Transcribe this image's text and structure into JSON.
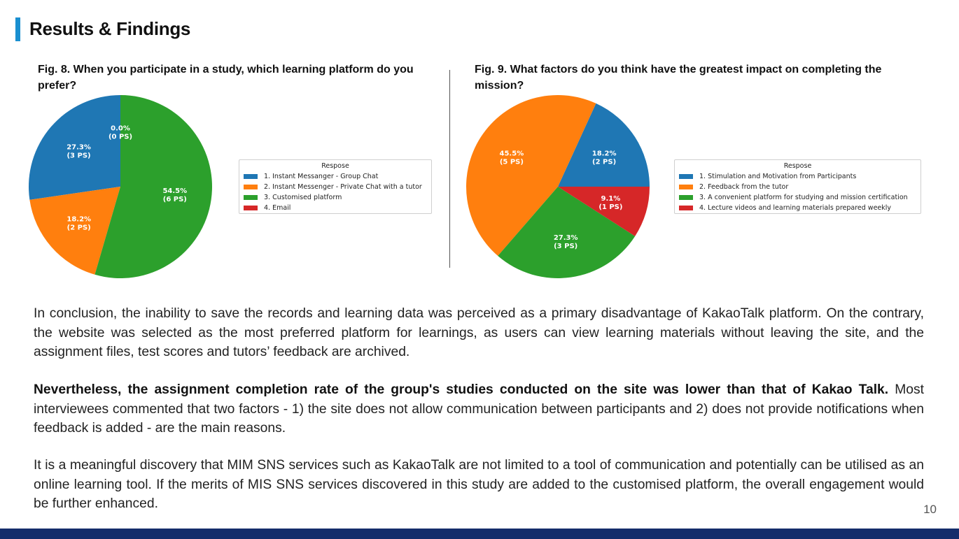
{
  "page": {
    "title": "Results & Findings",
    "page_number": "10",
    "accent_color": "#1a8fd0",
    "footer_color": "#142d6b"
  },
  "figures": {
    "fig8": {
      "caption": "Fig. 8. When you participate in a study, which learning platform do you prefer?"
    },
    "fig9": {
      "caption": "Fig. 9. What factors do you think have the greatest impact on completing the mission?"
    }
  },
  "chart_data": [
    {
      "type": "pie",
      "legend_title": "Respose",
      "legend_placement": "right",
      "start_angle_deg": 90,
      "direction": "counterclockwise",
      "categories": [
        "1. Instant Messanger - Group Chat",
        "2. Instant Messenger - Private Chat with a tutor",
        "3. Customised platform",
        "4. Email"
      ],
      "values": [
        27.3,
        18.2,
        54.5,
        0.0
      ],
      "labels": [
        [
          "27.3%",
          "(3 PS)"
        ],
        [
          "18.2%",
          "(2 PS)"
        ],
        [
          "54.5%",
          "(6 PS)"
        ],
        [
          "0.0%",
          "(0 PS)"
        ]
      ],
      "colors": [
        "#1f77b4",
        "#ff7f0e",
        "#2ca02c",
        "#d62728"
      ]
    },
    {
      "type": "pie",
      "legend_title": "Respose",
      "legend_placement": "right",
      "start_angle_deg": 0,
      "direction": "counterclockwise",
      "categories": [
        "1. Stimulation and Motivation from Participants",
        "2. Feedback from the tutor",
        "3. A convenient platform for studying and mission certification",
        "4. Lecture videos and learning materials prepared weekly"
      ],
      "values": [
        18.2,
        45.5,
        27.3,
        9.1
      ],
      "labels": [
        [
          "18.2%",
          "(2 PS)"
        ],
        [
          "45.5%",
          "(5 PS)"
        ],
        [
          "27.3%",
          "(3 PS)"
        ],
        [
          "9.1%",
          "(1 PS)"
        ]
      ],
      "colors": [
        "#1f77b4",
        "#ff7f0e",
        "#2ca02c",
        "#d62728"
      ]
    }
  ],
  "body": {
    "p1": "In conclusion, the inability to save the records and learning data was perceived as a primary disadvantage of KakaoTalk platform. On the contrary, the website was selected as the most preferred platform for learnings, as users can view learning materials without leaving the site, and the assignment files, test scores and tutors’ feedback are archived.",
    "p2_bold": "Nevertheless, the assignment completion rate of the group's studies conducted on the site was lower than that of Kakao Talk.",
    "p2_rest": " Most interviewees commented that two factors - 1) the site does not allow communication between participants and 2) does not provide notifications when feedback is added - are the main reasons.",
    "p3": "It is a meaningful discovery that MIM SNS services such as KakaoTalk are not limited to a tool of communication and potentially can be utilised as an online learning tool. If the merits of MIS SNS services discovered in this study are added to the customised platform, the overall engagement would be further enhanced."
  }
}
